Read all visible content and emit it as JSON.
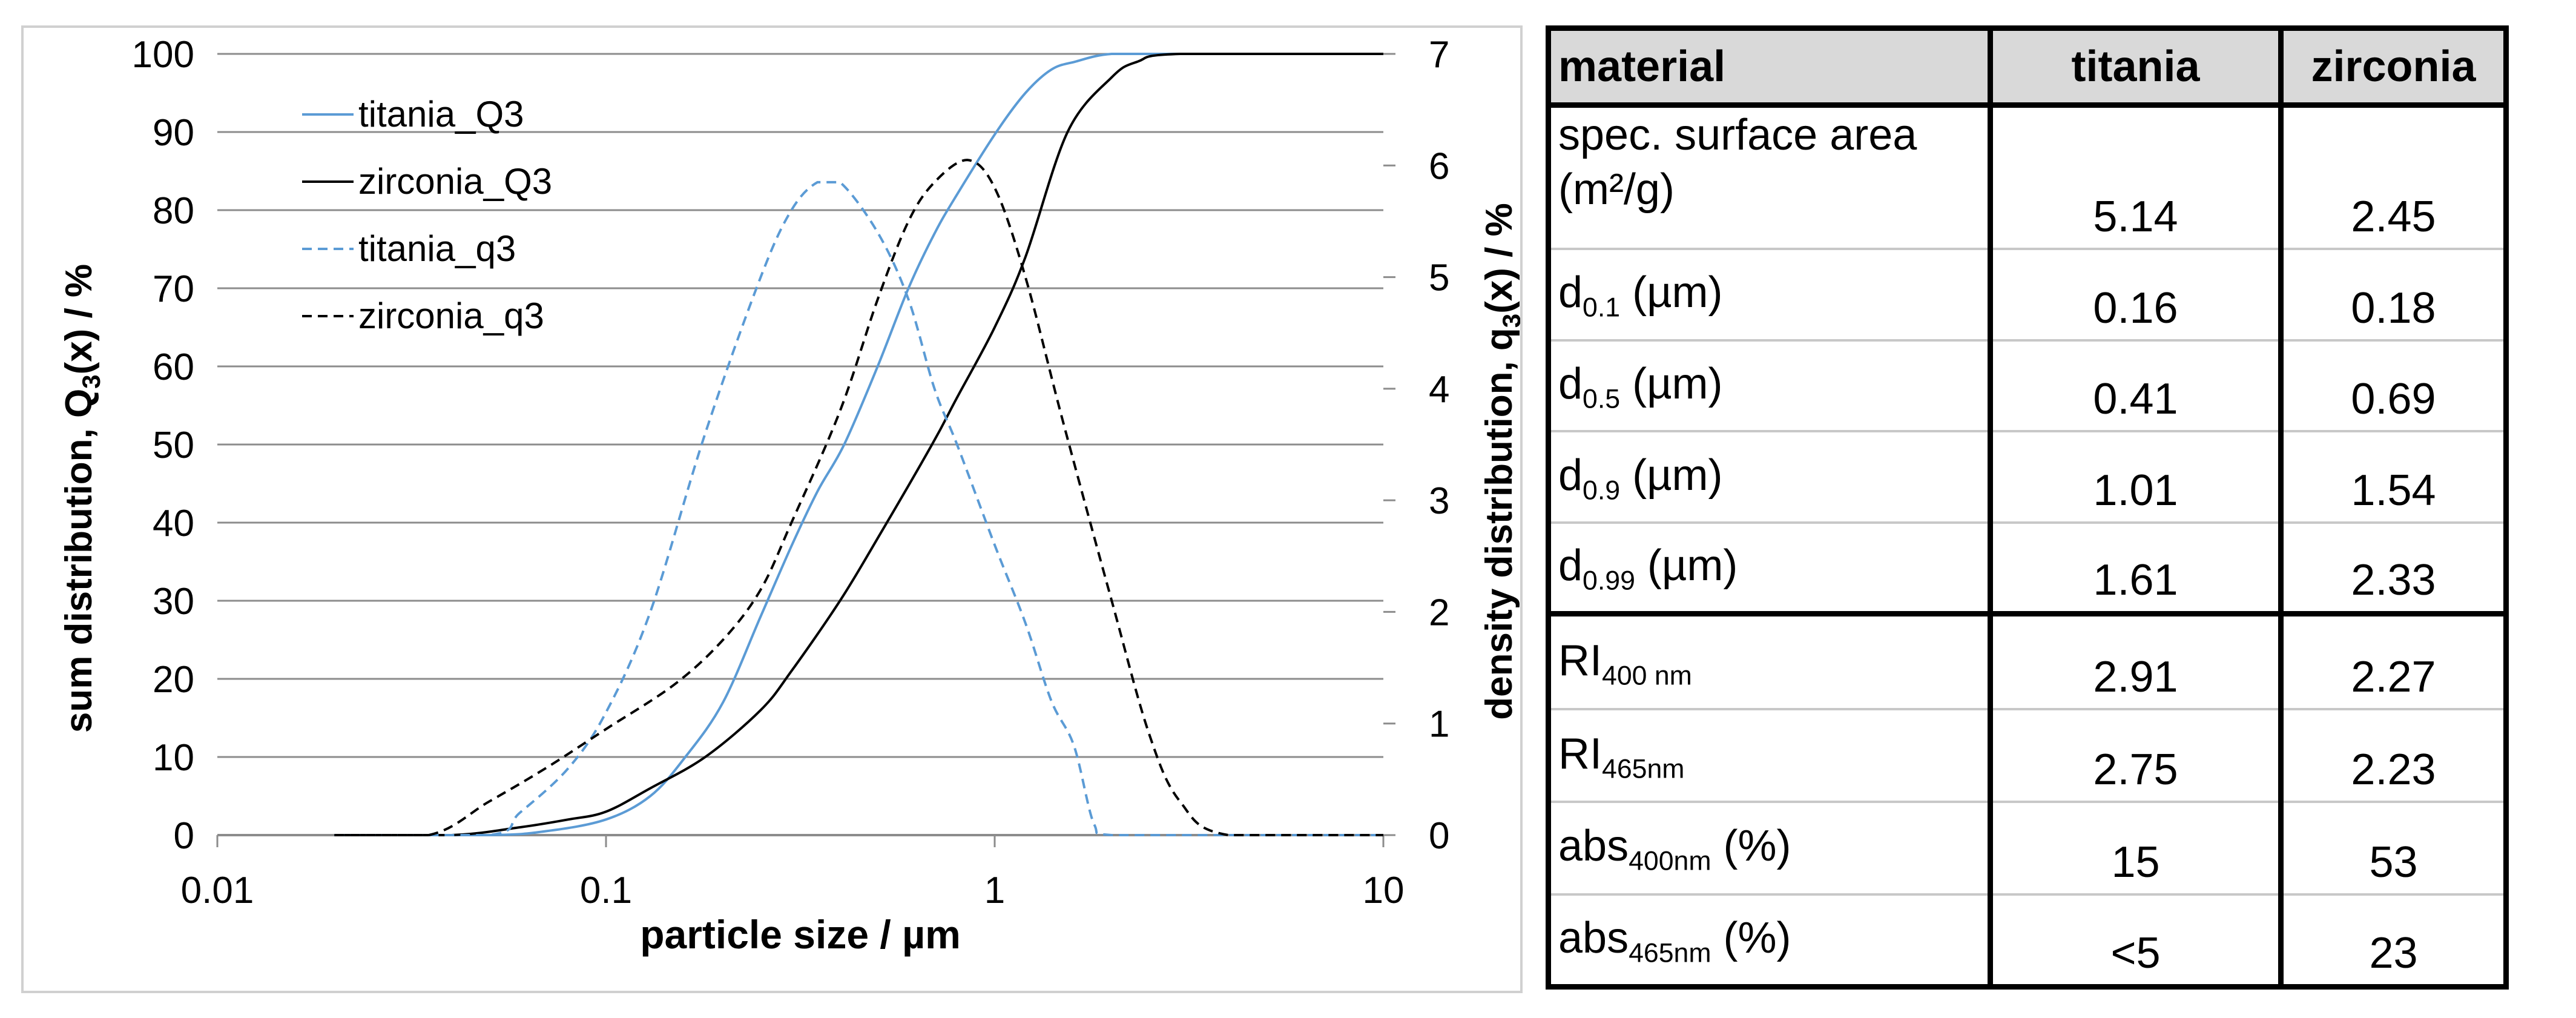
{
  "chart_data": {
    "type": "line",
    "xscale": "log",
    "xlim": [
      0.01,
      10
    ],
    "ylim": [
      0,
      100
    ],
    "y2lim": [
      0,
      7
    ],
    "x_ticks": [
      0.01,
      0.1,
      1,
      10
    ],
    "x_tick_labels": [
      "0.01",
      "0.1",
      "1",
      "10"
    ],
    "y_ticks": [
      0,
      10,
      20,
      30,
      40,
      50,
      60,
      70,
      80,
      90,
      100
    ],
    "y_tick_labels": [
      "0",
      "10",
      "20",
      "30",
      "40",
      "50",
      "60",
      "70",
      "80",
      "90",
      "100"
    ],
    "y2_ticks": [
      0,
      1,
      2,
      3,
      4,
      5,
      6,
      7
    ],
    "y2_tick_labels": [
      "0",
      "1",
      "2",
      "3",
      "4",
      "5",
      "6",
      "7"
    ],
    "xlabel": "particle size / µm",
    "ylabel": {
      "before": "sum distribution, Q",
      "sub": "3",
      "after": "(x) / %"
    },
    "y2label": {
      "before": "density distribution, q",
      "sub": "3",
      "after": "(x) / %"
    },
    "grid": true,
    "legend_position": "top-left",
    "series": [
      {
        "name": "titania_Q3",
        "axis": "left",
        "color": "#5b9bd5",
        "dash": "solid",
        "x": [
          0.02,
          0.05,
          0.07,
          0.1,
          0.13,
          0.16,
          0.2,
          0.25,
          0.3,
          0.35,
          0.41,
          0.5,
          0.6,
          0.7,
          0.8,
          1.01,
          1.2,
          1.4,
          1.61,
          2,
          3,
          10
        ],
        "y": [
          0,
          0,
          0.5,
          2,
          5,
          10,
          17,
          28,
          37,
          44,
          50,
          60,
          70,
          77,
          82,
          90,
          95,
          98,
          99,
          100,
          100,
          100
        ]
      },
      {
        "name": "zirconia_Q3",
        "axis": "left",
        "color": "#000000",
        "dash": "solid",
        "x": [
          0.02,
          0.04,
          0.06,
          0.08,
          0.1,
          0.13,
          0.18,
          0.25,
          0.3,
          0.4,
          0.5,
          0.69,
          0.8,
          1,
          1.2,
          1.54,
          2,
          2.33,
          3,
          10
        ],
        "y": [
          0,
          0,
          1,
          2,
          3,
          6,
          10,
          16,
          21,
          30,
          38,
          50,
          56,
          65,
          74,
          90,
          97,
          99,
          100,
          100
        ]
      },
      {
        "name": "titania_q3",
        "axis": "right",
        "color": "#5b9bd5",
        "dash": "dashed",
        "x": [
          0.02,
          0.05,
          0.06,
          0.08,
          0.1,
          0.13,
          0.18,
          0.25,
          0.3,
          0.35,
          0.4,
          0.5,
          0.6,
          0.7,
          0.8,
          1,
          1.2,
          1.4,
          1.6,
          1.8,
          2,
          4,
          10
        ],
        "y": [
          0,
          0,
          0.2,
          0.6,
          1.1,
          2,
          3.6,
          5,
          5.6,
          5.85,
          5.85,
          5.4,
          4.8,
          4,
          3.5,
          2.6,
          1.9,
          1.2,
          0.8,
          0.1,
          0,
          0,
          0
        ]
      },
      {
        "name": "zirconia_q3",
        "axis": "right",
        "color": "#000000",
        "dash": "dashed",
        "x": [
          0.02,
          0.035,
          0.05,
          0.07,
          0.1,
          0.15,
          0.2,
          0.25,
          0.3,
          0.4,
          0.5,
          0.6,
          0.7,
          0.85,
          1,
          1.2,
          1.5,
          2,
          2.5,
          3,
          4,
          10
        ],
        "y": [
          0,
          0,
          0.3,
          0.6,
          0.95,
          1.35,
          1.75,
          2.2,
          2.8,
          3.8,
          4.8,
          5.5,
          5.85,
          6.05,
          5.8,
          5,
          3.7,
          2.1,
          0.9,
          0.3,
          0,
          0
        ]
      }
    ]
  },
  "table": {
    "headers": [
      "material",
      "titania",
      "zirconia"
    ],
    "rows": [
      {
        "label": "spec. surface area",
        "label2": "(m²/g)",
        "titania": "5.14",
        "zirconia": "2.45"
      },
      {
        "base": "d",
        "sub": "0.1",
        "unit": " (µm)",
        "titania": "0.16",
        "zirconia": "0.18"
      },
      {
        "base": "d",
        "sub": "0.5",
        "unit": " (µm)",
        "titania": "0.41",
        "zirconia": "0.69"
      },
      {
        "base": "d",
        "sub": "0.9",
        "unit": " (µm)",
        "titania": "1.01",
        "zirconia": "1.54"
      },
      {
        "base": "d",
        "sub": "0.99",
        "unit": " (µm)",
        "titania": "1.61",
        "zirconia": "2.33"
      },
      {
        "base": "RI",
        "sub": "400 nm",
        "unit": "",
        "titania": "2.91",
        "zirconia": "2.27"
      },
      {
        "base": "RI",
        "sub": "465nm",
        "unit": "",
        "titania": "2.75",
        "zirconia": "2.23"
      },
      {
        "base": "abs",
        "sub": "400nm",
        "unit": " (%)",
        "titania": "15",
        "zirconia": "53"
      },
      {
        "base": "abs",
        "sub": "465nm",
        "unit": " (%)",
        "titania": "<5",
        "zirconia": "23"
      }
    ]
  }
}
